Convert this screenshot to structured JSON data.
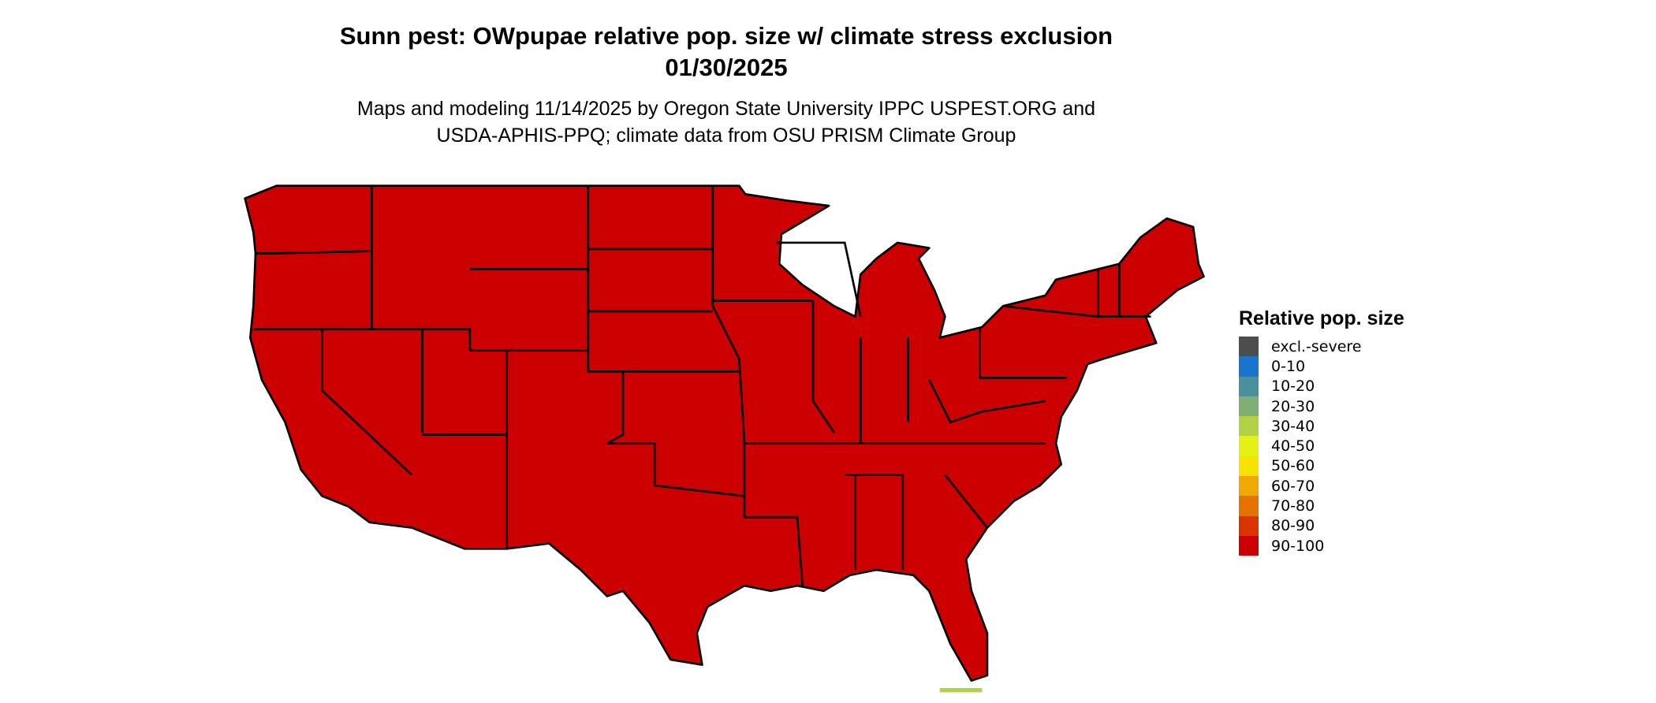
{
  "title": {
    "line1": "Sunn pest: OWpupae relative pop. size w/ climate stress exclusion",
    "line2": "01/30/2025"
  },
  "subtitle": {
    "line1": "Maps and modeling 11/14/2025 by Oregon State University IPPC USPEST.ORG and",
    "line2": "USDA-APHIS-PPQ; climate data from OSU PRISM Climate Group"
  },
  "map": {
    "fill_color": "#CC0000",
    "border_color": "#000000"
  },
  "legend": {
    "title": "Relative pop. size",
    "items": [
      {
        "label": "excl.-severe",
        "color": "#4D4D4D"
      },
      {
        "label": "0-10",
        "color": "#1874CD"
      },
      {
        "label": "10-20",
        "color": "#4A8F9C"
      },
      {
        "label": "20-30",
        "color": "#7FAF72"
      },
      {
        "label": "30-40",
        "color": "#B2D145"
      },
      {
        "label": "40-50",
        "color": "#E5F014"
      },
      {
        "label": "50-60",
        "color": "#F9E200"
      },
      {
        "label": "60-70",
        "color": "#EFA800"
      },
      {
        "label": "70-80",
        "color": "#E37200"
      },
      {
        "label": "80-90",
        "color": "#D93300"
      },
      {
        "label": "90-100",
        "color": "#CC0000"
      }
    ]
  }
}
